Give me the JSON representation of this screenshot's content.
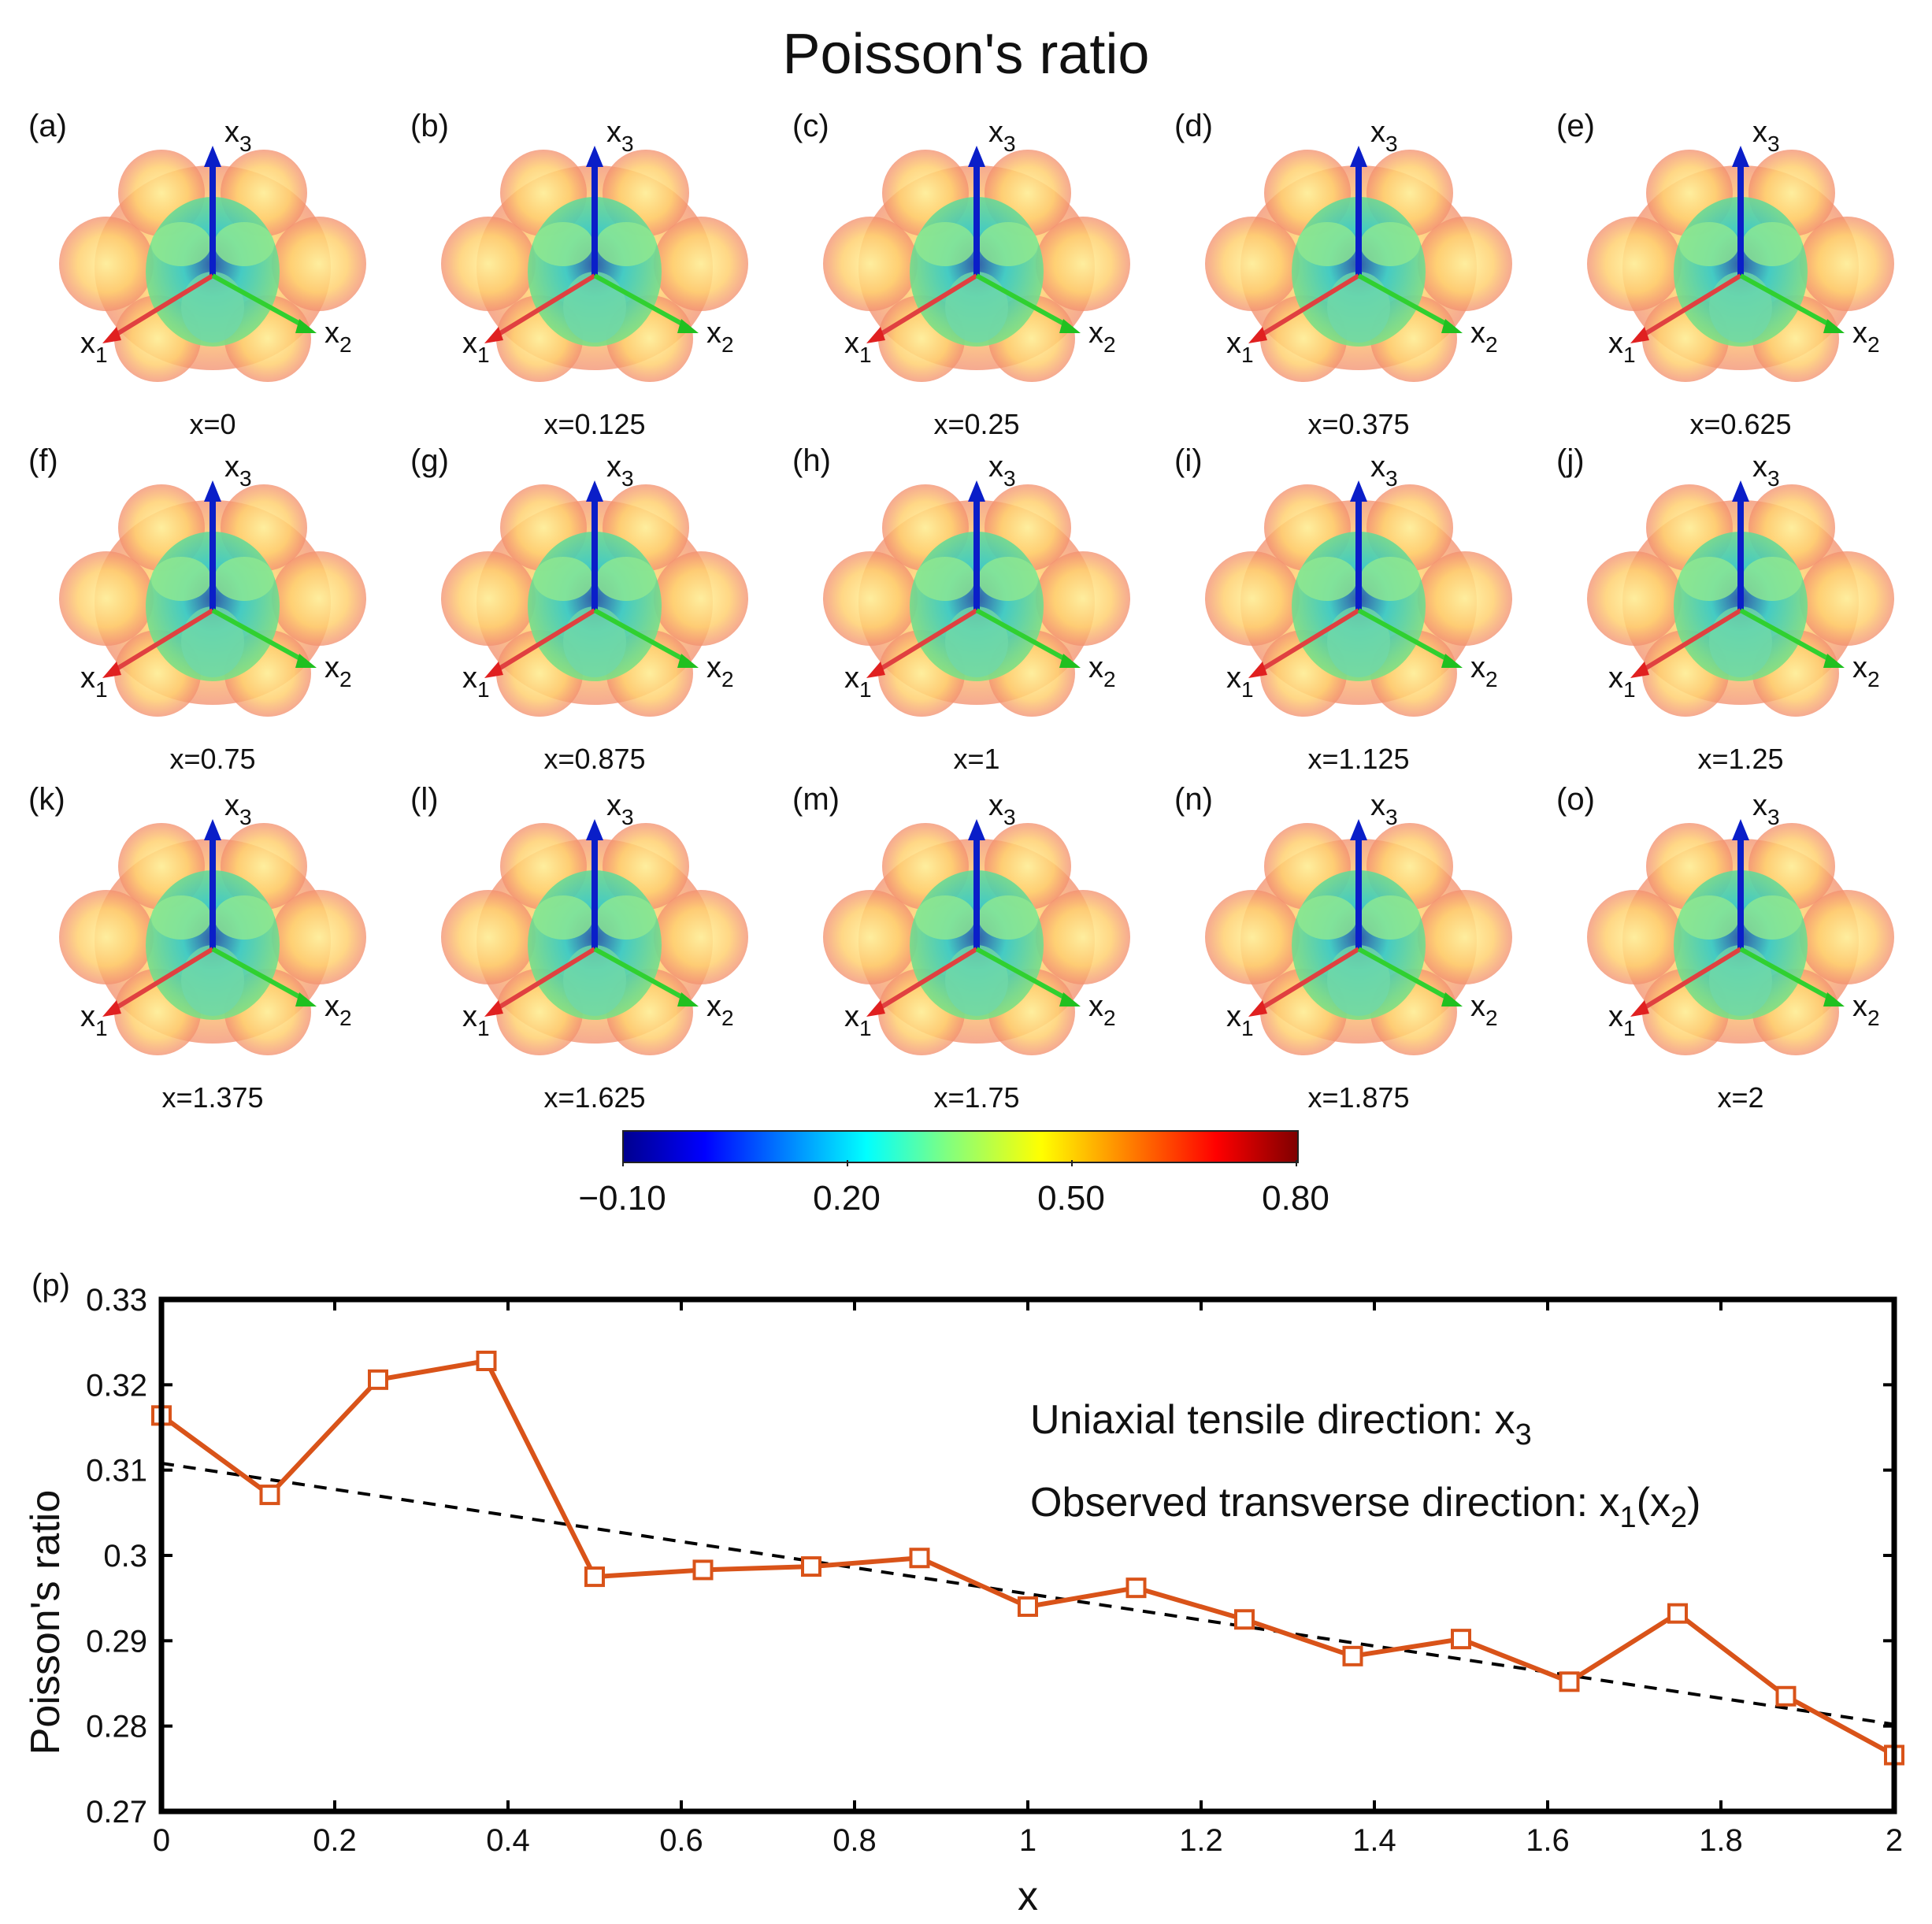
{
  "figure_title": "Poisson's ratio",
  "panels": [
    {
      "letter": "(a)",
      "x_label": "x=0"
    },
    {
      "letter": "(b)",
      "x_label": "x=0.125"
    },
    {
      "letter": "(c)",
      "x_label": "x=0.25"
    },
    {
      "letter": "(d)",
      "x_label": "x=0.375"
    },
    {
      "letter": "(e)",
      "x_label": "x=0.625"
    },
    {
      "letter": "(f)",
      "x_label": "x=0.75"
    },
    {
      "letter": "(g)",
      "x_label": "x=0.875"
    },
    {
      "letter": "(h)",
      "x_label": "x=1"
    },
    {
      "letter": "(i)",
      "x_label": "x=1.125"
    },
    {
      "letter": "(j)",
      "x_label": "x=1.25"
    },
    {
      "letter": "(k)",
      "x_label": "x=1.375"
    },
    {
      "letter": "(l)",
      "x_label": "x=1.625"
    },
    {
      "letter": "(m)",
      "x_label": "x=1.75"
    },
    {
      "letter": "(n)",
      "x_label": "x=1.875"
    },
    {
      "letter": "(o)",
      "x_label": "x=2"
    }
  ],
  "axes_labels": {
    "x1": "x",
    "x1_sub": "1",
    "x2": "x",
    "x2_sub": "2",
    "x3": "x",
    "x3_sub": "3"
  },
  "colorbar": {
    "ticks": [
      {
        "label": "−0.10",
        "value": -0.1
      },
      {
        "label": "0.20",
        "value": 0.2
      },
      {
        "label": "0.50",
        "value": 0.5
      },
      {
        "label": "0.80",
        "value": 0.8
      }
    ],
    "min": -0.1,
    "max": 0.8
  },
  "chart_data": {
    "type": "line",
    "panel_label": "(p)",
    "title": "",
    "xlabel": "x",
    "ylabel": "Poisson's ratio",
    "xlim": [
      0,
      2
    ],
    "ylim": [
      0.27,
      0.33
    ],
    "xticks": [
      0,
      0.2,
      0.4,
      0.6,
      0.8,
      1,
      1.2,
      1.4,
      1.6,
      1.8,
      2
    ],
    "xtick_labels": [
      "0",
      "0.2",
      "0.4",
      "0.6",
      "0.8",
      "1",
      "1.2",
      "1.4",
      "1.6",
      "1.8",
      "2"
    ],
    "yticks": [
      0.27,
      0.28,
      0.29,
      0.3,
      0.31,
      0.32,
      0.33
    ],
    "ytick_labels": [
      "0.27",
      "0.28",
      "0.29",
      "0.3",
      "0.31",
      "0.32",
      "0.33"
    ],
    "series": [
      {
        "name": "Poisson's ratio",
        "color": "#d95319",
        "marker": "square",
        "x": [
          0,
          0.125,
          0.25,
          0.375,
          0.5,
          0.625,
          0.75,
          0.875,
          1,
          1.125,
          1.25,
          1.375,
          1.5,
          1.625,
          1.75,
          1.875,
          2
        ],
        "y": [
          0.3164,
          0.3071,
          0.3206,
          0.3228,
          0.2975,
          0.2983,
          0.2987,
          0.2997,
          0.294,
          0.2962,
          0.2925,
          0.2882,
          0.2902,
          0.2852,
          0.2932,
          0.2835,
          0.2766
        ]
      },
      {
        "name": "linear fit",
        "color": "#000000",
        "style": "dashed",
        "x": [
          0,
          2
        ],
        "y": [
          0.3108,
          0.2802
        ]
      }
    ],
    "annotations": [
      {
        "text": "Uniaxial tensile direction: x",
        "sub": "3",
        "suffix": ""
      },
      {
        "text": "Observed transverse direction: x",
        "sub": "1",
        "suffix_open": "(x",
        "suffix_sub": "2",
        "suffix_close": ")"
      }
    ]
  }
}
